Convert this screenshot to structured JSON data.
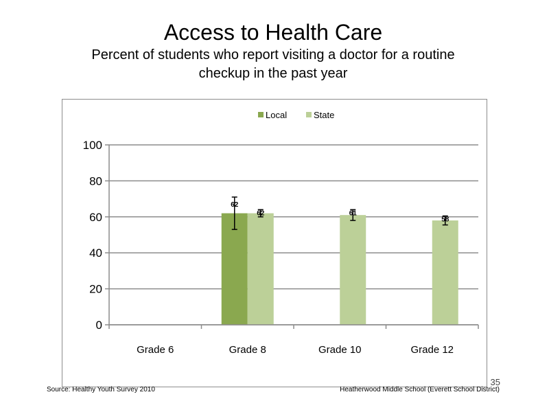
{
  "slide": {
    "title": "Access to Health Care",
    "subtitle": "Percent of students who report visiting a doctor for a routine checkup in the past year",
    "source": "Source: Healthy Youth Survey 2010",
    "footer": "Heatherwood Middle School (Everett School District)",
    "page_number": "35"
  },
  "chart_data": {
    "type": "bar",
    "title": "",
    "xlabel": "",
    "ylabel": "",
    "categories": [
      "Grade 6",
      "Grade 8",
      "Grade 10",
      "Grade 12"
    ],
    "ylim": [
      0,
      100
    ],
    "yticks": [
      0,
      20,
      40,
      60,
      80,
      100
    ],
    "grid": true,
    "legend_position": "top",
    "series": [
      {
        "name": "Local",
        "color": "#8aa84f",
        "values": [
          null,
          62,
          null,
          null
        ],
        "labels": [
          null,
          "62",
          null,
          null
        ],
        "error_low": [
          null,
          53,
          null,
          null
        ],
        "error_high": [
          null,
          71,
          null,
          null
        ]
      },
      {
        "name": "State",
        "color": "#bcd098",
        "values": [
          null,
          62,
          61,
          58
        ],
        "labels": [
          null,
          "62",
          "61",
          "58"
        ],
        "error_low": [
          null,
          60,
          58,
          55.5
        ],
        "error_high": [
          null,
          64,
          64,
          60.5
        ]
      }
    ]
  }
}
